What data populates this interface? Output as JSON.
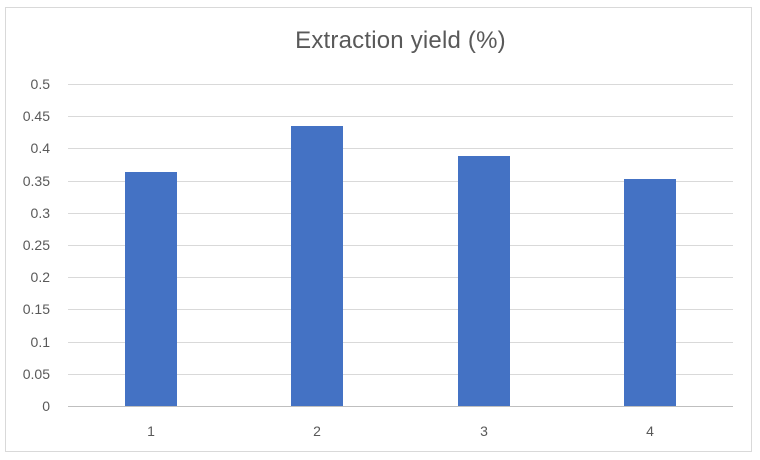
{
  "chart_data": {
    "type": "bar",
    "title": "Extraction yield (%)",
    "categories": [
      "1",
      "2",
      "3",
      "4"
    ],
    "values": [
      0.363,
      0.435,
      0.388,
      0.352
    ],
    "xlabel": "",
    "ylabel": "",
    "ylim": [
      0,
      0.5
    ],
    "ytick_values": [
      0,
      0.05,
      0.1,
      0.15,
      0.2,
      0.25,
      0.3,
      0.35,
      0.4,
      0.45,
      0.5
    ],
    "ytick_labels": [
      "0",
      "0.05",
      "0.1",
      "0.15",
      "0.2",
      "0.25",
      "0.3",
      "0.35",
      "0.4",
      "0.45",
      "0.5"
    ],
    "grid": true,
    "legend": false,
    "colors": {
      "bar": "#4472C4",
      "gridline": "#D9D9D9",
      "axis_line": "#BFBFBF",
      "label": "#595959",
      "title": "#595959",
      "chart_border": "#D9D9D9",
      "background": "#FFFFFF"
    }
  }
}
